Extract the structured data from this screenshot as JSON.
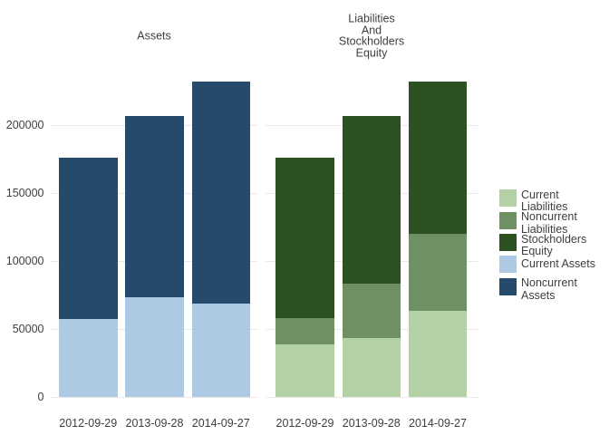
{
  "chart_data": {
    "type": "bar",
    "stacked": true,
    "background": "#ffffff",
    "text_color": "#3e3e3e",
    "grid_color": "#e9e9e9",
    "grid": true,
    "legend_position": "right",
    "y_axis": {
      "ticks": [
        0,
        50000,
        100000,
        150000,
        200000
      ],
      "tick_labels": [
        "0",
        "50000",
        "100000",
        "150000",
        "200000"
      ],
      "range": [
        0,
        235000
      ]
    },
    "facets": [
      {
        "title": "Assets",
        "title_lines": [
          "Assets"
        ],
        "categories": [
          "2012-09-29",
          "2013-09-28",
          "2014-09-27"
        ],
        "series": [
          {
            "name": "Current Assets",
            "color": "#aec9e3",
            "values": [
              57653,
              73286,
              68531
            ]
          },
          {
            "name": "Noncurrent Assets",
            "color": "#254a6c",
            "values": [
              118411,
              133714,
              163308
            ]
          }
        ]
      },
      {
        "title": "Liabilities And Stockholders Equity",
        "title_lines": [
          "Liabilities",
          "And",
          "Stockholders",
          "Equity"
        ],
        "categories": [
          "2012-09-29",
          "2013-09-28",
          "2014-09-27"
        ],
        "series": [
          {
            "name": "Current Liabilities",
            "color": "#b3d1a4",
            "values": [
              38542,
              43658,
              63448
            ]
          },
          {
            "name": "Noncurrent Liabilities",
            "color": "#6e9063",
            "values": [
              19312,
              39793,
              56844
            ]
          },
          {
            "name": "Stockholders Equity",
            "color": "#2e5121",
            "values": [
              118210,
              123549,
              111547
            ]
          }
        ]
      }
    ],
    "legend": {
      "items": [
        {
          "name": "Current Liabilities",
          "label_lines": [
            "Current",
            "Liabilities"
          ],
          "color": "#b3d1a4"
        },
        {
          "name": "Noncurrent Liabilities",
          "label_lines": [
            "Noncurrent",
            "Liabilities"
          ],
          "color": "#6e9063"
        },
        {
          "name": "Stockholders Equity",
          "label_lines": [
            "Stockholders",
            "Equity"
          ],
          "color": "#2e5121"
        },
        {
          "name": "Current Assets",
          "label_lines": [
            "Current Assets"
          ],
          "color": "#aec9e3"
        },
        {
          "name": "Noncurrent Assets",
          "label_lines": [
            "Noncurrent",
            "Assets"
          ],
          "color": "#254a6c"
        }
      ]
    }
  }
}
